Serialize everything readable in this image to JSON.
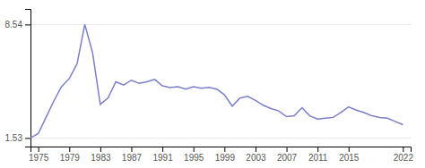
{
  "chart_data": {
    "type": "line",
    "x": [
      1974,
      1975,
      1976,
      1977,
      1978,
      1979,
      1980,
      1981,
      1982,
      1983,
      1984,
      1985,
      1986,
      1987,
      1988,
      1989,
      1990,
      1991,
      1992,
      1993,
      1994,
      1995,
      1996,
      1997,
      1998,
      1999,
      2000,
      2001,
      2002,
      2003,
      2004,
      2005,
      2006,
      2007,
      2008,
      2009,
      2010,
      2011,
      2012,
      2013,
      2014,
      2015,
      2016,
      2017,
      2018,
      2019,
      2020,
      2021,
      2022
    ],
    "values": [
      1.53,
      1.8,
      2.8,
      3.8,
      4.7,
      5.2,
      6.1,
      8.54,
      6.8,
      3.6,
      4.0,
      5.0,
      4.8,
      5.1,
      4.9,
      5.0,
      5.15,
      4.75,
      4.65,
      4.7,
      4.55,
      4.7,
      4.6,
      4.65,
      4.55,
      4.2,
      3.5,
      4.0,
      4.1,
      3.85,
      3.55,
      3.35,
      3.2,
      2.85,
      2.9,
      3.4,
      2.9,
      2.7,
      2.75,
      2.8,
      3.1,
      3.45,
      3.25,
      3.1,
      2.9,
      2.8,
      2.75,
      2.55,
      2.35
    ],
    "color": "#7b7ec8",
    "xlim": [
      1974,
      2023
    ],
    "xticks": [
      1975,
      1979,
      1983,
      1987,
      1991,
      1995,
      1999,
      2003,
      2007,
      2011,
      2015,
      2022
    ],
    "ylim": [
      1.0,
      9.5
    ],
    "yticks": [
      1.53,
      8.54
    ],
    "grid": true
  }
}
